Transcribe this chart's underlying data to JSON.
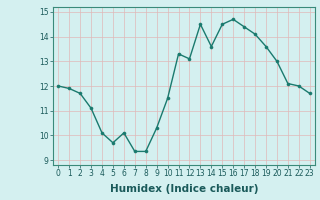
{
  "xlabel": "Humidex (Indice chaleur)",
  "x": [
    0,
    1,
    2,
    3,
    4,
    5,
    6,
    7,
    8,
    9,
    10,
    11,
    12,
    13,
    14,
    15,
    16,
    17,
    18,
    19,
    20,
    21,
    22,
    23
  ],
  "y": [
    12.0,
    11.9,
    11.7,
    11.1,
    10.1,
    9.7,
    10.1,
    9.35,
    9.35,
    10.3,
    11.5,
    13.3,
    13.1,
    14.5,
    13.6,
    14.5,
    14.7,
    14.4,
    14.1,
    13.6,
    13.0,
    12.1,
    12.0,
    11.7
  ],
  "ylim": [
    8.8,
    15.2
  ],
  "xlim": [
    -0.5,
    23.5
  ],
  "yticks": [
    9,
    10,
    11,
    12,
    13,
    14,
    15
  ],
  "xticks": [
    0,
    1,
    2,
    3,
    4,
    5,
    6,
    7,
    8,
    9,
    10,
    11,
    12,
    13,
    14,
    15,
    16,
    17,
    18,
    19,
    20,
    21,
    22,
    23
  ],
  "line_color": "#1a7a6e",
  "marker_color": "#1a7a6e",
  "bg_color": "#d4f0f0",
  "grid_color": "#c8dede",
  "tick_fontsize": 5.5,
  "xlabel_fontsize": 7.5,
  "marker_size": 2.2,
  "line_width": 1.0
}
